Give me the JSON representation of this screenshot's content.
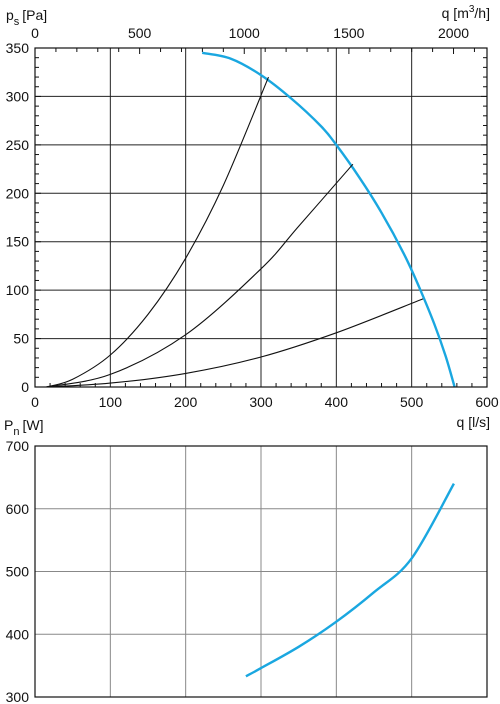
{
  "colors": {
    "curve": "#1aa7e0",
    "grid": "#222222",
    "grid_light": "#888888"
  },
  "chart_data": [
    {
      "type": "line",
      "ylabel_main": "p",
      "ylabel_sub": "s",
      "ylabel_unit": "[Pa]",
      "xlabel": "q [l/s]",
      "x2label_main": "q [m",
      "x2label_sup": "3",
      "x2label_unit": "/h]",
      "xlim": [
        0,
        600
      ],
      "ylim": [
        0,
        350
      ],
      "xticks": [
        0,
        100,
        200,
        300,
        400,
        500,
        600
      ],
      "yticks": [
        0,
        50,
        100,
        150,
        200,
        250,
        300,
        350
      ],
      "x2ticks": [
        0,
        500,
        1000,
        1500,
        2000
      ],
      "grid": true,
      "series": [
        {
          "values": [
            [
              222,
              345
            ],
            [
              260,
              339
            ],
            [
              300,
              322
            ],
            [
              340,
              298
            ],
            [
              380,
              269
            ],
            [
              400,
              250
            ],
            [
              430,
              217
            ],
            [
              460,
              180
            ],
            [
              490,
              137
            ],
            [
              510,
              103
            ],
            [
              530,
              65
            ],
            [
              545,
              32
            ],
            [
              557,
              0
            ]
          ]
        },
        {
          "values": [
            [
              15,
              0
            ],
            [
              50,
              8
            ],
            [
              100,
              33
            ],
            [
              150,
              75
            ],
            [
              200,
              133
            ],
            [
              250,
              208
            ],
            [
              310,
              320
            ]
          ]
        },
        {
          "values": [
            [
              15,
              0
            ],
            [
              100,
              13
            ],
            [
              200,
              54
            ],
            [
              300,
              122
            ],
            [
              350,
              166
            ],
            [
              422,
              230
            ]
          ]
        },
        {
          "values": [
            [
              15,
              0
            ],
            [
              100,
              4
            ],
            [
              200,
              14
            ],
            [
              300,
              31
            ],
            [
              400,
              56
            ],
            [
              515,
              91
            ]
          ]
        }
      ]
    },
    {
      "type": "line",
      "ylabel_main": "P",
      "ylabel_sub": "n",
      "ylabel_unit": "[W]",
      "xlim": [
        0,
        600
      ],
      "ylim": [
        300,
        700
      ],
      "yticks": [
        300,
        400,
        500,
        600,
        700
      ],
      "xgrid": [
        100,
        200,
        300,
        400,
        500
      ],
      "grid": true,
      "series": [
        {
          "values": [
            [
              280,
              333
            ],
            [
              300,
              346
            ],
            [
              350,
              380
            ],
            [
              400,
              420
            ],
            [
              450,
              467
            ],
            [
              500,
              521
            ],
            [
              556,
              640
            ]
          ]
        }
      ]
    }
  ]
}
